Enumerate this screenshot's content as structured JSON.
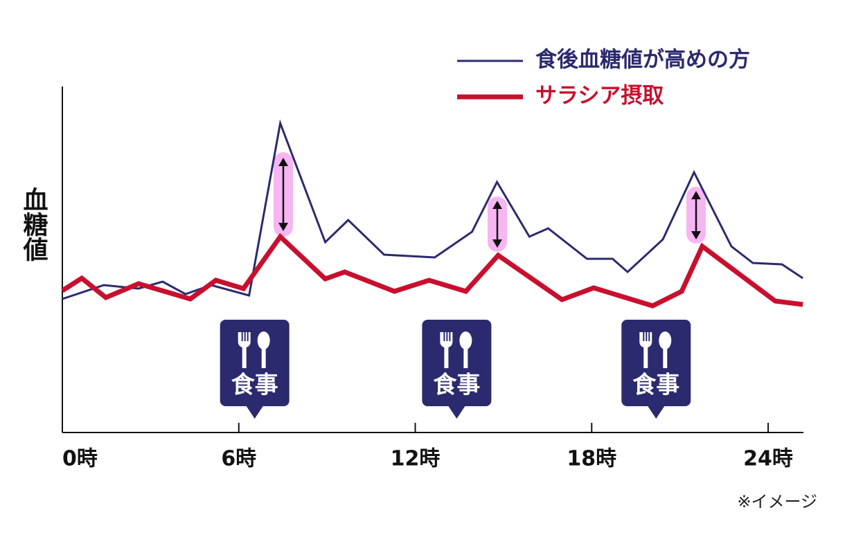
{
  "chart_data": {
    "type": "line",
    "y_label": "血糖値",
    "note": "※イメージ",
    "xlim": [
      0,
      25.2
    ],
    "ylim": [
      0,
      100
    ],
    "xticks": [
      {
        "value": 0,
        "label": "0時"
      },
      {
        "value": 6,
        "label": "6時"
      },
      {
        "value": 12,
        "label": "12時"
      },
      {
        "value": 18,
        "label": "18時"
      },
      {
        "value": 24,
        "label": "24時"
      }
    ],
    "series": [
      {
        "name": "食後血糖値が高めの方",
        "color": "#2b2a6e",
        "x": [
          0,
          1.41,
          2.59,
          3.41,
          4.19,
          5.06,
          6.35,
          7.41,
          8.94,
          9.72,
          10.94,
          12.66,
          13.93,
          14.78,
          15.88,
          16.52,
          17.84,
          18.71,
          19.22,
          20.42,
          21.48,
          22.75,
          23.48,
          24.47,
          25.18
        ],
        "values": [
          38.6,
          42.6,
          41.6,
          43.6,
          40,
          42.6,
          39.6,
          89.4,
          55,
          61.4,
          51.4,
          50.6,
          58,
          72.4,
          56.6,
          59,
          50.2,
          50.2,
          46.4,
          55.8,
          75.2,
          53.8,
          49,
          48.6,
          44.6
        ]
      },
      {
        "name": "サラシア摂取",
        "color": "#c8102e",
        "x": [
          0,
          0.66,
          1.48,
          2.59,
          4.35,
          5.22,
          6.16,
          7.41,
          8.94,
          9.6,
          11.29,
          12.47,
          13.72,
          14.82,
          16.99,
          18.07,
          20.07,
          21.06,
          21.76,
          24.24,
          25.18
        ],
        "values": [
          41,
          44.6,
          39,
          43,
          38.6,
          44,
          41.6,
          56.6,
          44.4,
          46.4,
          40.8,
          44,
          40.8,
          51.2,
          38.4,
          41.8,
          36.6,
          40.8,
          53.8,
          38,
          37
        ]
      }
    ],
    "meals": [
      {
        "x": 6.54,
        "label": "食事"
      },
      {
        "x": 13.41,
        "label": "食事"
      },
      {
        "x": 20.19,
        "label": "食事"
      }
    ]
  }
}
